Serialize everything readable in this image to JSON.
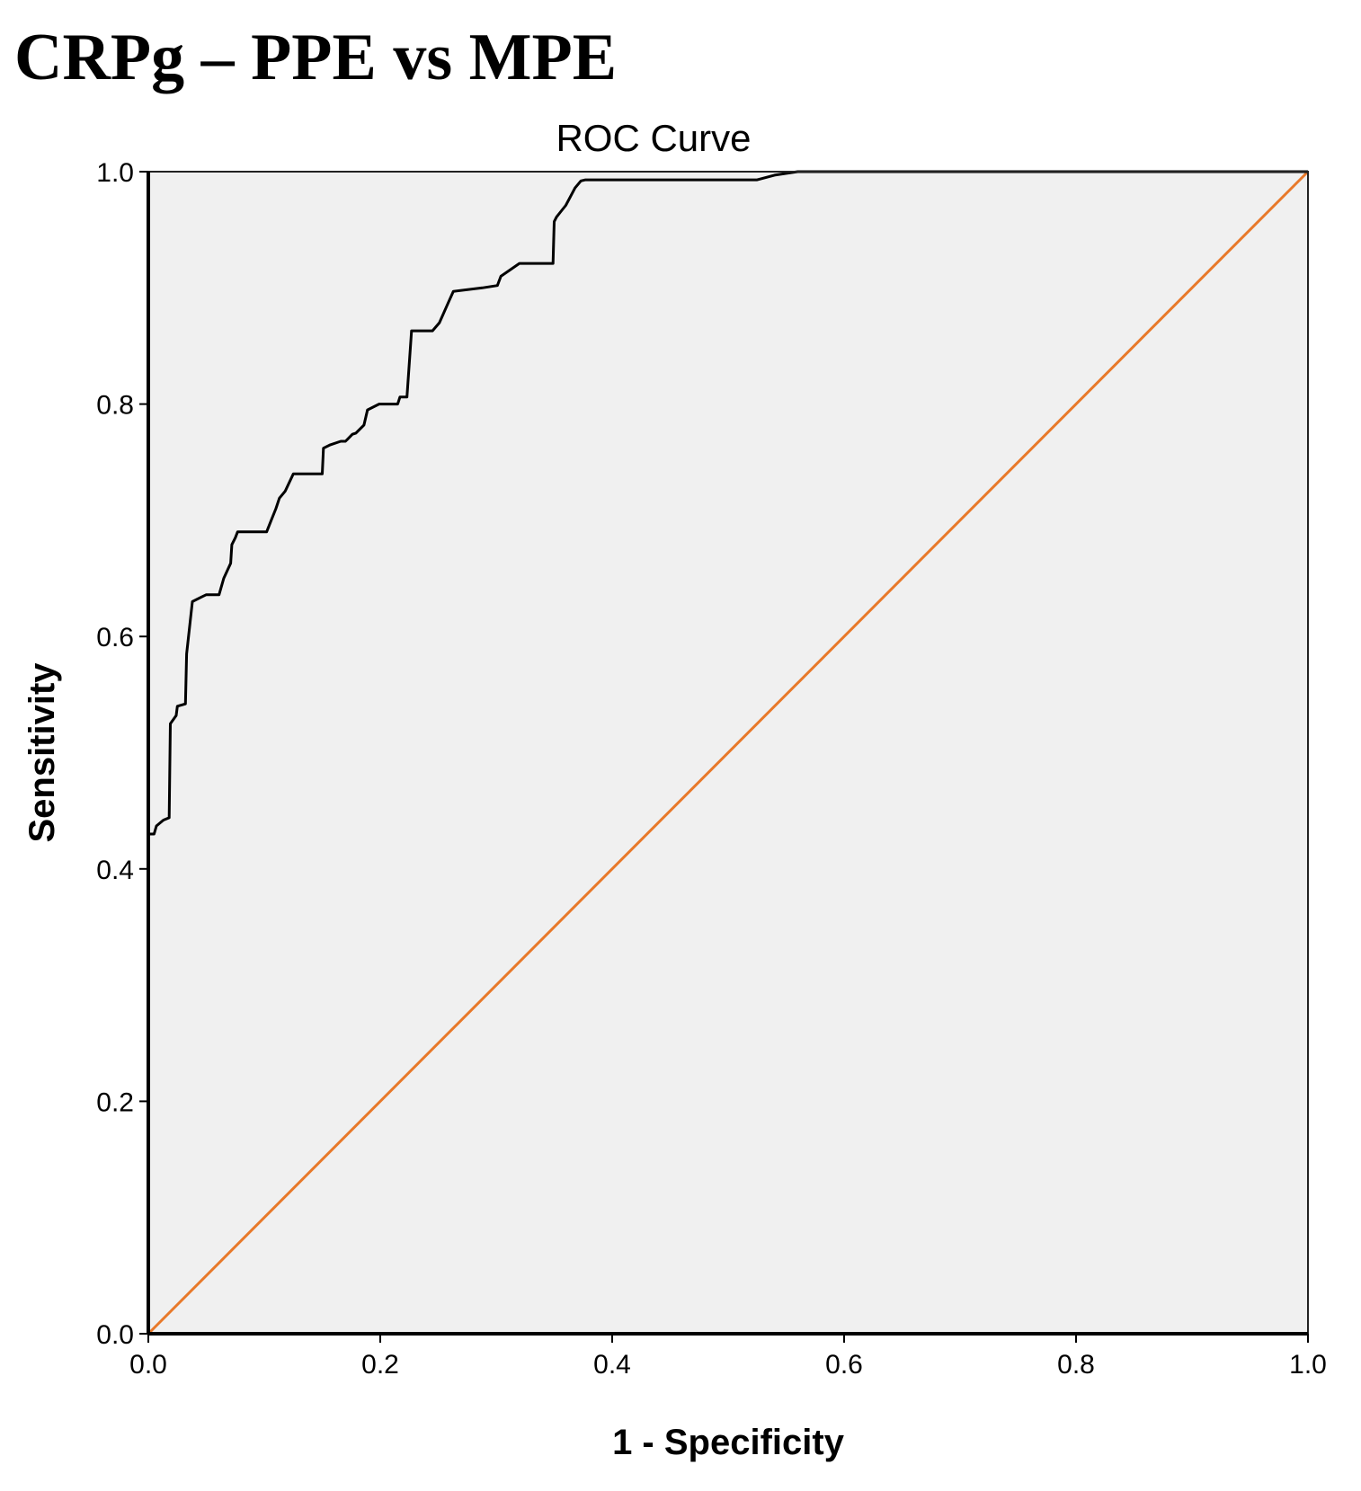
{
  "heading": "CRPg – PPE vs MPE",
  "chart_data": {
    "type": "line",
    "title": "ROC Curve",
    "xlabel": "1 - Specificity",
    "ylabel": "Sensitivity",
    "xlim": [
      0,
      1
    ],
    "ylim": [
      0,
      1
    ],
    "xticks": [
      "0.0",
      "0.2",
      "0.4",
      "0.6",
      "0.8",
      "1.0"
    ],
    "yticks": [
      "0.0",
      "0.2",
      "0.4",
      "0.6",
      "0.8",
      "1.0"
    ],
    "grid": false,
    "legend": "none",
    "colors": {
      "roc": "#000000",
      "reference": "#e8792a",
      "background": "#f0f0f0"
    },
    "series": [
      {
        "role": "roc",
        "x": [
          0.0,
          0.0,
          0.005,
          0.007,
          0.013,
          0.018,
          0.019,
          0.024,
          0.025,
          0.032,
          0.033,
          0.038,
          0.046,
          0.05,
          0.061,
          0.065,
          0.071,
          0.072,
          0.075,
          0.077,
          0.081,
          0.102,
          0.106,
          0.11,
          0.113,
          0.118,
          0.125,
          0.131,
          0.15,
          0.151,
          0.157,
          0.166,
          0.17,
          0.172,
          0.176,
          0.179,
          0.186,
          0.189,
          0.199,
          0.215,
          0.217,
          0.22,
          0.223,
          0.227,
          0.245,
          0.251,
          0.259,
          0.263,
          0.288,
          0.301,
          0.304,
          0.32,
          0.331,
          0.341,
          0.349,
          0.35,
          0.352,
          0.356,
          0.36,
          0.368,
          0.373,
          0.377,
          0.425,
          0.525,
          0.54,
          0.56,
          1.0
        ],
        "y": [
          0.0,
          0.43,
          0.43,
          0.437,
          0.442,
          0.444,
          0.525,
          0.532,
          0.54,
          0.542,
          0.585,
          0.63,
          0.634,
          0.636,
          0.636,
          0.65,
          0.663,
          0.679,
          0.685,
          0.69,
          0.69,
          0.69,
          0.7,
          0.71,
          0.719,
          0.725,
          0.74,
          0.74,
          0.74,
          0.762,
          0.765,
          0.768,
          0.768,
          0.77,
          0.774,
          0.775,
          0.782,
          0.795,
          0.8,
          0.8,
          0.806,
          0.806,
          0.806,
          0.863,
          0.863,
          0.87,
          0.888,
          0.897,
          0.9,
          0.902,
          0.91,
          0.921,
          0.921,
          0.921,
          0.921,
          0.957,
          0.961,
          0.966,
          0.971,
          0.986,
          0.992,
          0.993,
          0.993,
          0.993,
          0.997,
          1.0,
          1.0
        ]
      },
      {
        "role": "reference",
        "x": [
          0,
          1
        ],
        "y": [
          0,
          1
        ]
      }
    ]
  }
}
